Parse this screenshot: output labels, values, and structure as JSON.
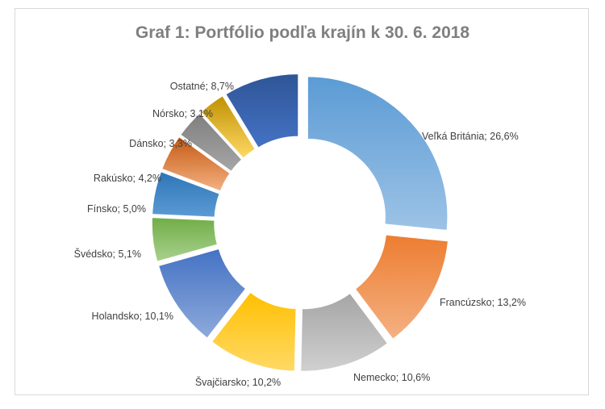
{
  "chart_data": {
    "type": "pie",
    "variant": "exploded-donut",
    "title": "Graf 1: Portfólio podľa krajín k 30. 6. 2018",
    "categories": [
      "Veľká Británia",
      "Francúzsko",
      "Nemecko",
      "Švajčiarsko",
      "Holandsko",
      "Švédsko",
      "Fínsko",
      "Rakúsko",
      "Dánsko",
      "Nórsko",
      "Ostatné"
    ],
    "values": [
      26.6,
      13.2,
      10.6,
      10.2,
      10.1,
      5.1,
      5.0,
      4.2,
      3.3,
      3.1,
      8.7
    ],
    "labels": [
      "Veľká Británia; 26,6%",
      "Francúzsko; 13,2%",
      "Nemecko; 10,6%",
      "Švajčiarsko; 10,2%",
      "Holandsko; 10,1%",
      "Švédsko; 5,1%",
      "Fínsko; 5,0%",
      "Rakúsko; 4,2%",
      "Dánsko; 3,3%",
      "Nórsko; 3,1%",
      "Ostatné; 8,7%"
    ],
    "colors": [
      [
        "#5b9bd5",
        "#9dc3e6"
      ],
      [
        "#ed7d31",
        "#f4b183"
      ],
      [
        "#a5a5a5",
        "#d0d0d0"
      ],
      [
        "#ffc000",
        "#ffd966"
      ],
      [
        "#4472c4",
        "#8eaadb"
      ],
      [
        "#70ad47",
        "#a9d18e"
      ],
      [
        "#2e75b6",
        "#5b9bd5"
      ],
      [
        "#c55a11",
        "#f4b183"
      ],
      [
        "#7f7f7f",
        "#a6a6a6"
      ],
      [
        "#bf9000",
        "#ffd966"
      ],
      [
        "#2f5597",
        "#4472c4"
      ]
    ],
    "legend": "none (data labels on slices)",
    "start_angle": "12 o'clock",
    "direction": "clockwise"
  }
}
